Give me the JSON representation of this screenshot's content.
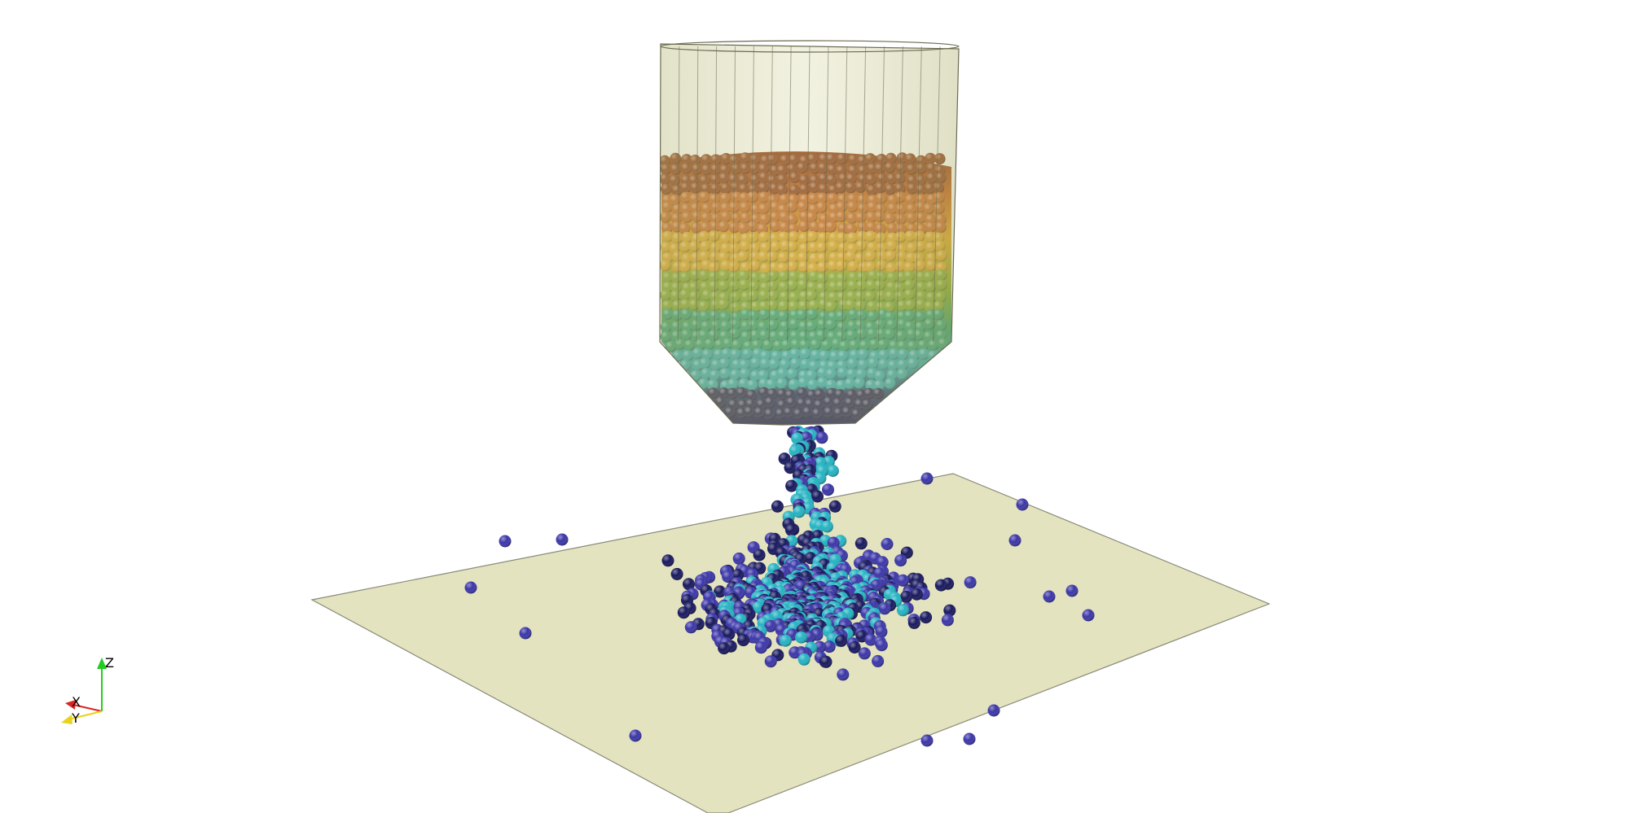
{
  "scene": {
    "background": "#ffffff",
    "floor_color": "#e3e3bf",
    "hopper_color": "#c9c98e",
    "layer_colors": [
      "#8c3a14",
      "#c4631f",
      "#d8a021",
      "#7fa22a",
      "#2f9a6c",
      "#2fa5a8",
      "#1f1f4f"
    ],
    "particle_colors": {
      "navy": "#17175e",
      "blue": "#3a35a8",
      "teal": "#23b3c2"
    }
  },
  "orientation_axes": {
    "z_label": "Z",
    "x_label": "X",
    "y_label": "Y",
    "z_color": "#22cc22",
    "x_color": "#dd2222",
    "y_color": "#e8d21a"
  }
}
